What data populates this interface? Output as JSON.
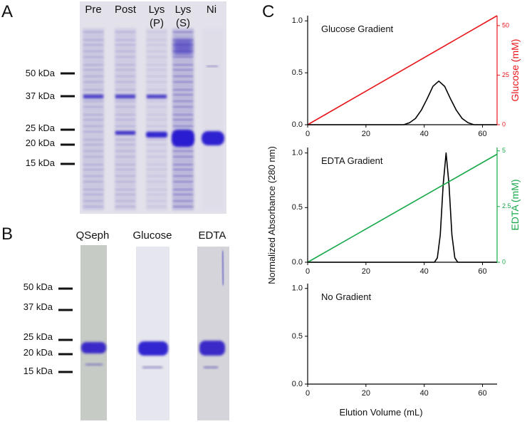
{
  "panel_labels": [
    "A",
    "B",
    "C"
  ],
  "gel_a": {
    "lanes": [
      [
        "Pre"
      ],
      [
        "Post"
      ],
      [
        "Lys",
        "(P)"
      ],
      [
        "Lys",
        "(S)"
      ],
      [
        "Ni"
      ]
    ],
    "markers": [
      "50 kDa",
      "37 kDa",
      "25 kDa",
      "20 kDa",
      "15 kDa"
    ]
  },
  "gel_b": {
    "lanes": [
      "QSeph",
      "Glucose",
      "EDTA"
    ],
    "markers": [
      "50 kDa",
      "37 kDa",
      "25 kDa",
      "20 kDa",
      "15 kDa"
    ]
  },
  "chart_data": [
    {
      "type": "line",
      "annotation": "Glucose Gradient",
      "xlim": [
        0,
        65
      ],
      "xticks": [
        0,
        20,
        40,
        60
      ],
      "ylim": [
        0,
        1.05
      ],
      "yticks": [
        {
          "value": 0,
          "label": "0.0"
        },
        {
          "value": 0.5,
          "label": "0.5"
        },
        {
          "value": 1,
          "label": "1.0"
        }
      ],
      "y2lim": [
        0,
        55
      ],
      "y2ticks": [
        0,
        25,
        50
      ],
      "y2label": "Glucose (mM)",
      "series": [
        {
          "color": "#000000",
          "x": [
            0,
            33,
            35,
            37,
            39,
            41,
            43,
            45,
            47,
            49,
            51,
            53,
            55,
            57,
            65
          ],
          "values": [
            0,
            0,
            0.02,
            0.06,
            0.14,
            0.25,
            0.37,
            0.42,
            0.37,
            0.25,
            0.14,
            0.06,
            0.02,
            0,
            0
          ]
        },
        {
          "color": "#e8151b",
          "axis": "y2",
          "x": [
            0,
            65
          ],
          "values": [
            0,
            55
          ]
        }
      ]
    },
    {
      "type": "line",
      "annotation": "EDTA Gradient",
      "ylabel": "Normalized Absorbance (280 nm)",
      "xlim": [
        0,
        65
      ],
      "xticks": [
        0,
        20,
        40,
        60
      ],
      "ylim": [
        0,
        1.05
      ],
      "yticks": [
        {
          "value": 0,
          "label": "0.0"
        },
        {
          "value": 0.5,
          "label": "0.5"
        },
        {
          "value": 1,
          "label": "1.0"
        }
      ],
      "y2lim": [
        0,
        5.15
      ],
      "y2ticks": [
        0,
        2.5,
        5
      ],
      "y2label": "EDTA (mM)",
      "series": [
        {
          "color": "#000000",
          "x": [
            0,
            43.5,
            44.5,
            45.5,
            46.5,
            47.5,
            48.5,
            49.5,
            50.5,
            51.5,
            65
          ],
          "values": [
            0,
            0,
            0.04,
            0.25,
            0.71,
            1,
            0.71,
            0.25,
            0.04,
            0,
            0
          ]
        },
        {
          "color": "#17a84a",
          "axis": "y2",
          "x": [
            0,
            65
          ],
          "values": [
            0,
            4.85
          ]
        }
      ]
    },
    {
      "type": "line",
      "annotation": "No Gradient",
      "xlabel": "Elution Volume (mL)",
      "xlim": [
        0,
        65
      ],
      "xticks": [
        0,
        20,
        40,
        60
      ],
      "ylim": [
        0,
        1.05
      ],
      "yticks": [
        {
          "value": 0,
          "label": "0.0"
        },
        {
          "value": 0.5,
          "label": "0.5"
        },
        {
          "value": 1,
          "label": "1.0"
        }
      ],
      "series": []
    }
  ]
}
